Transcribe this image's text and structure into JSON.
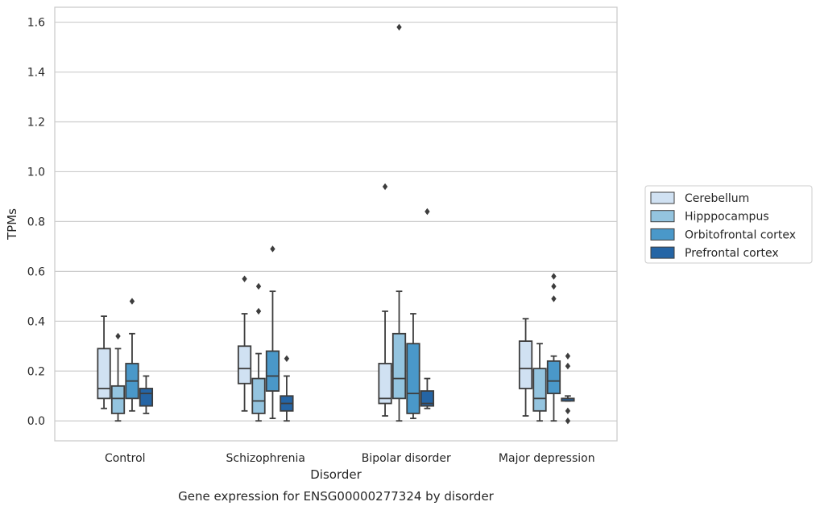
{
  "chart_data": {
    "type": "boxplot",
    "caption": "Gene expression for ENSG00000277324 by disorder",
    "xlabel": "Disorder",
    "ylabel": "TPMs",
    "ylim": [
      -0.08,
      1.66
    ],
    "yticks": [
      0.0,
      0.2,
      0.4,
      0.6,
      0.8,
      1.0,
      1.2,
      1.4,
      1.6
    ],
    "ytick_labels": [
      "0.0",
      "0.2",
      "0.4",
      "0.6",
      "0.8",
      "1.0",
      "1.2",
      "1.4",
      "1.6"
    ],
    "grid": "horizontal",
    "legend_position": "right",
    "categories": [
      "Control",
      "Schizophrenia",
      "Bipolar disorder",
      "Major depression"
    ],
    "series": [
      {
        "name": "Cerebellum",
        "color": "#d0e1f2",
        "boxes": [
          {
            "whislo": 0.05,
            "q1": 0.09,
            "med": 0.13,
            "q3": 0.29,
            "whishi": 0.42,
            "fliers": []
          },
          {
            "whislo": 0.04,
            "q1": 0.15,
            "med": 0.21,
            "q3": 0.3,
            "whishi": 0.43,
            "fliers": [
              0.57
            ]
          },
          {
            "whislo": 0.02,
            "q1": 0.07,
            "med": 0.09,
            "q3": 0.23,
            "whishi": 0.44,
            "fliers": [
              0.94
            ]
          },
          {
            "whislo": 0.02,
            "q1": 0.13,
            "med": 0.21,
            "q3": 0.32,
            "whishi": 0.41,
            "fliers": []
          }
        ]
      },
      {
        "name": "Hipppocampus",
        "color": "#94c4df",
        "boxes": [
          {
            "whislo": 0.0,
            "q1": 0.03,
            "med": 0.09,
            "q3": 0.14,
            "whishi": 0.29,
            "fliers": [
              0.34
            ]
          },
          {
            "whislo": 0.0,
            "q1": 0.03,
            "med": 0.08,
            "q3": 0.17,
            "whishi": 0.27,
            "fliers": [
              0.44,
              0.54
            ]
          },
          {
            "whislo": 0.0,
            "q1": 0.09,
            "med": 0.17,
            "q3": 0.35,
            "whishi": 0.52,
            "fliers": [
              1.58
            ]
          },
          {
            "whislo": 0.0,
            "q1": 0.04,
            "med": 0.09,
            "q3": 0.21,
            "whishi": 0.31,
            "fliers": []
          }
        ]
      },
      {
        "name": "Orbitofrontal cortex",
        "color": "#4a98c9",
        "boxes": [
          {
            "whislo": 0.04,
            "q1": 0.09,
            "med": 0.16,
            "q3": 0.23,
            "whishi": 0.35,
            "fliers": [
              0.48
            ]
          },
          {
            "whislo": 0.01,
            "q1": 0.12,
            "med": 0.18,
            "q3": 0.28,
            "whishi": 0.52,
            "fliers": [
              0.69
            ]
          },
          {
            "whislo": 0.01,
            "q1": 0.03,
            "med": 0.11,
            "q3": 0.31,
            "whishi": 0.43,
            "fliers": []
          },
          {
            "whislo": 0.0,
            "q1": 0.11,
            "med": 0.16,
            "q3": 0.24,
            "whishi": 0.26,
            "fliers": [
              0.49,
              0.54,
              0.58
            ]
          }
        ]
      },
      {
        "name": "Prefrontal cortex",
        "color": "#2565a5",
        "boxes": [
          {
            "whislo": 0.03,
            "q1": 0.06,
            "med": 0.11,
            "q3": 0.13,
            "whishi": 0.18,
            "fliers": []
          },
          {
            "whislo": 0.0,
            "q1": 0.04,
            "med": 0.07,
            "q3": 0.1,
            "whishi": 0.18,
            "fliers": [
              0.25
            ]
          },
          {
            "whislo": 0.05,
            "q1": 0.06,
            "med": 0.07,
            "q3": 0.12,
            "whishi": 0.17,
            "fliers": [
              0.84
            ]
          },
          {
            "whislo": 0.08,
            "q1": 0.08,
            "med": 0.09,
            "q3": 0.09,
            "whishi": 0.1,
            "fliers": [
              0.0,
              0.04,
              0.22,
              0.26
            ]
          }
        ]
      }
    ]
  }
}
